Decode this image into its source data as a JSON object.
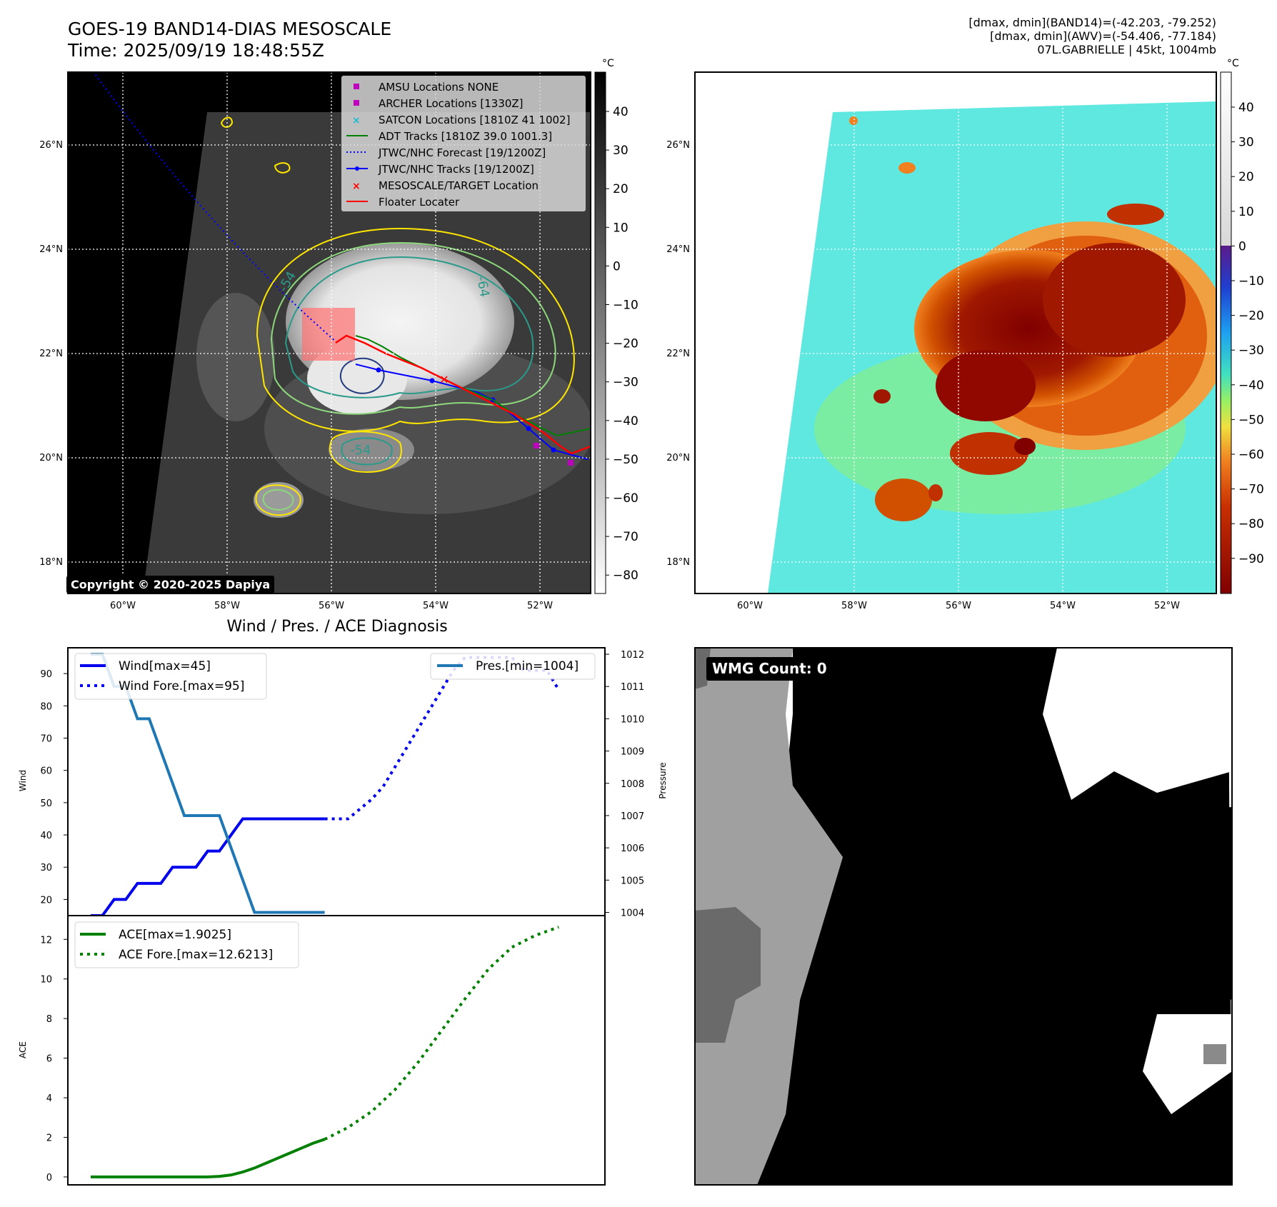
{
  "header": {
    "title_line1": "GOES-19 BAND14-DIAS MESOSCALE",
    "title_line2": "Time: 2025/09/19 18:48:55Z",
    "info_line1": "[dmax, dmin](BAND14)=(-42.203, -79.252)",
    "info_line2": "[dmax, dmin](AWV)=(-54.406, -77.184)",
    "info_line3": "07L.GABRIELLE | 45kt, 1004mb"
  },
  "map_left": {
    "lat_labels": [
      "26°N",
      "24°N",
      "22°N",
      "20°N",
      "18°N"
    ],
    "lon_labels": [
      "60°W",
      "58°W",
      "56°W",
      "54°W",
      "52°W"
    ],
    "copyright": "Copyright © 2020-2025 Dapiya",
    "contour_labels": [
      "-54",
      "-64",
      "-54"
    ],
    "legend": [
      {
        "label": "AMSU Locations NONE",
        "marker": "square",
        "color": "#c000c0"
      },
      {
        "label": "ARCHER Locations [1330Z]",
        "marker": "square",
        "color": "#c000c0"
      },
      {
        "label": "SATCON Locations [1810Z 41 1002]",
        "marker": "x",
        "color": "#17becf"
      },
      {
        "label": "ADT Tracks [1810Z 39.0 1001.3]",
        "marker": "line",
        "color": "#008000"
      },
      {
        "label": "JTWC/NHC Forecast [19/1200Z]",
        "marker": "dotted",
        "color": "#0000ff"
      },
      {
        "label": "JTWC/NHC Tracks [19/1200Z]",
        "marker": "line-dot",
        "color": "#0000ff"
      },
      {
        "label": "MESOSCALE/TARGET Location",
        "marker": "x",
        "color": "#ff0000"
      },
      {
        "label": "Floater Locater",
        "marker": "line",
        "color": "#ff0000"
      }
    ],
    "colorbar": {
      "unit": "°C",
      "ticks": [
        "40",
        "30",
        "20",
        "10",
        "0",
        "−10",
        "−20",
        "−30",
        "−40",
        "−50",
        "−60",
        "−70",
        "−80"
      ]
    }
  },
  "map_right": {
    "lat_labels": [
      "26°N",
      "24°N",
      "22°N",
      "20°N",
      "18°N"
    ],
    "lon_labels": [
      "60°W",
      "58°W",
      "56°W",
      "54°W",
      "52°W"
    ],
    "colorbar": {
      "unit": "°C",
      "ticks": [
        "40",
        "30",
        "20",
        "10",
        "0",
        "−10",
        "−20",
        "−30",
        "−40",
        "−50",
        "−60",
        "−70",
        "−80",
        "−90"
      ]
    }
  },
  "diag_title": "Wind / Pres. / ACE Diagnosis",
  "wmg_count": "WMG Count: 0",
  "chart_data": [
    {
      "type": "line",
      "title": "Wind / Pres. / ACE Diagnosis",
      "ylabel": "Wind",
      "y2label": "Pressure",
      "ylim": [
        15,
        98
      ],
      "y2lim": [
        1003.9,
        1012.2
      ],
      "yticks": [
        20,
        30,
        40,
        50,
        60,
        70,
        80,
        90
      ],
      "y2ticks": [
        1004,
        1005,
        1006,
        1007,
        1008,
        1009,
        1010,
        1011,
        1012
      ],
      "x_range": [
        0,
        42
      ],
      "legend_left": [
        "Wind[max=45]",
        "Wind Fore.[max=95]"
      ],
      "legend_right": [
        "Pres.[min=1004]"
      ],
      "series": [
        {
          "name": "Wind[max=45]",
          "axis": "left",
          "color": "#0000ee",
          "style": "solid",
          "x": [
            0,
            1,
            2,
            3,
            4,
            5,
            6,
            7,
            8,
            9,
            10,
            11,
            12,
            13,
            14,
            15,
            16,
            17,
            18,
            19,
            20
          ],
          "y": [
            15,
            15,
            20,
            20,
            25,
            25,
            25,
            30,
            30,
            30,
            35,
            35,
            40,
            45,
            45,
            45,
            45,
            45,
            45,
            45,
            45
          ]
        },
        {
          "name": "Wind Fore.[max=95]",
          "axis": "left",
          "color": "#0000ee",
          "style": "dotted",
          "x": [
            20,
            21,
            22,
            23,
            24,
            25,
            26,
            27,
            28,
            29,
            30,
            31,
            32,
            33,
            34,
            35,
            36,
            37,
            38,
            39,
            40
          ],
          "y": [
            45,
            45,
            45,
            48,
            51,
            55,
            61,
            67,
            73,
            79,
            85,
            91,
            95,
            95,
            95,
            95,
            95,
            91,
            91,
            91,
            85
          ]
        },
        {
          "name": "Pres.[min=1004]",
          "axis": "right",
          "color": "#1f77b4",
          "style": "solid",
          "x": [
            0,
            1,
            2,
            3,
            4,
            5,
            6,
            7,
            8,
            9,
            10,
            11,
            12,
            13,
            14,
            15,
            16,
            17,
            18,
            19,
            20
          ],
          "y": [
            1012,
            1012,
            1011,
            1011,
            1010,
            1010,
            1009,
            1008,
            1007,
            1007,
            1007,
            1007,
            1006,
            1005,
            1004,
            1004,
            1004,
            1004,
            1004,
            1004,
            1004
          ]
        }
      ]
    },
    {
      "type": "line",
      "ylabel": "ACE",
      "ylim": [
        -0.4,
        13.2
      ],
      "yticks": [
        0,
        2,
        4,
        6,
        8,
        10,
        12
      ],
      "x_range": [
        0,
        42
      ],
      "legend": [
        "ACE[max=1.9025]",
        "ACE Fore.[max=12.6213]"
      ],
      "series": [
        {
          "name": "ACE[max=1.9025]",
          "color": "#008000",
          "style": "solid",
          "x": [
            0,
            2,
            4,
            6,
            8,
            10,
            11,
            12,
            13,
            14,
            15,
            16,
            17,
            18,
            19,
            20
          ],
          "y": [
            0,
            0,
            0,
            0,
            0,
            0,
            0.03,
            0.1,
            0.25,
            0.45,
            0.7,
            0.95,
            1.2,
            1.45,
            1.7,
            1.9025
          ]
        },
        {
          "name": "ACE Fore.[max=12.6213]",
          "color": "#008000",
          "style": "dotted",
          "x": [
            20,
            22,
            24,
            26,
            28,
            30,
            32,
            34,
            36,
            38,
            40
          ],
          "y": [
            1.9025,
            2.5,
            3.3,
            4.4,
            5.8,
            7.4,
            9.0,
            10.5,
            11.6,
            12.2,
            12.6213
          ]
        }
      ]
    }
  ]
}
